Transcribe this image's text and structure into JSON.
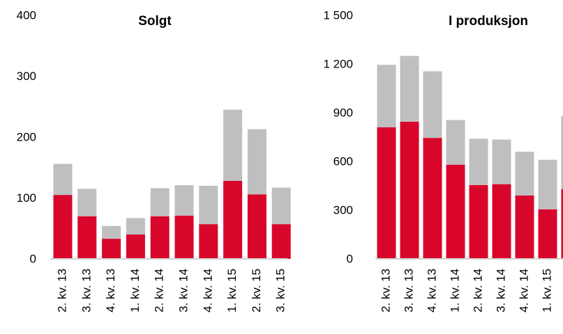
{
  "chart_data": [
    {
      "type": "bar",
      "title": "Solgt",
      "categories": [
        "2. kv. 13",
        "3. kv. 13",
        "4. kv. 13",
        "1. kv. 14",
        "2. kv. 14",
        "3. kv. 14",
        "4. kv. 14",
        "1. kv. 15",
        "2. kv. 15",
        "3. kv. 15"
      ],
      "series": [
        {
          "color": "#d9062b",
          "values": [
            105,
            70,
            33,
            40,
            70,
            71,
            57,
            128,
            106,
            57
          ]
        },
        {
          "color": "#bfbfbf",
          "values": [
            51,
            45,
            21,
            27,
            46,
            50,
            63,
            117,
            107,
            60
          ]
        }
      ],
      "ylim": [
        0,
        400
      ],
      "yticks": [
        0,
        100,
        200,
        300,
        400
      ],
      "stacked": true
    },
    {
      "type": "bar",
      "title": "I produksjon",
      "categories": [
        "2. kv. 13",
        "3. kv. 13",
        "4. kv. 13",
        "1. kv. 14",
        "2. kv. 14",
        "3. kv. 14",
        "4. kv. 14",
        "1. kv. 15",
        null
      ],
      "series": [
        {
          "color": "#d9062b",
          "values": [
            810,
            845,
            745,
            580,
            455,
            460,
            390,
            305,
            430
          ]
        },
        {
          "color": "#bfbfbf",
          "values": [
            385,
            405,
            410,
            275,
            285,
            275,
            270,
            305,
            450
          ]
        }
      ],
      "ylim": [
        0,
        1500
      ],
      "yticks": [
        0,
        300,
        600,
        {
          "value": 900,
          "label": "900"
        },
        {
          "value": 1200,
          "label": "1 200"
        },
        {
          "value": 1500,
          "label": "1 500"
        }
      ],
      "stacked": true
    }
  ]
}
